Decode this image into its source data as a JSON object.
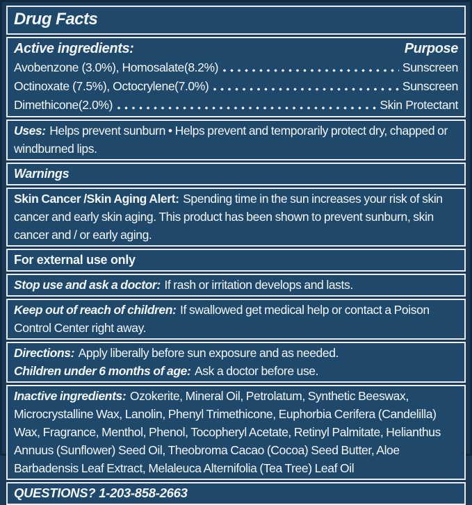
{
  "colors": {
    "panel_background": "#1f486b",
    "outer_background": "#1b3a57",
    "outer_border": "#10293f",
    "box_border_line": "#e9eff5",
    "text": "#f3f7fa"
  },
  "title": "Drug Facts",
  "active_ingredients": {
    "heading": "Active ingredients:",
    "purpose_heading": "Purpose",
    "rows": [
      {
        "ingredient": "Avobenzone (3.0%), Homosalate(8.2%)",
        "purpose": "Sunscreen"
      },
      {
        "ingredient": "Octinoxate (7.5%), Octocrylene(7.0%)",
        "purpose": "Sunscreen"
      },
      {
        "ingredient": "Dimethicone(2.0%)",
        "purpose": "Skin Protectant"
      }
    ]
  },
  "uses": {
    "label": "Uses:",
    "text": "Helps prevent sunburn • Helps prevent and temporarily protect dry, chapped or windburned lips."
  },
  "warnings_heading": "Warnings",
  "skin_alert": {
    "label": "Skin Cancer /Skin Aging Alert:",
    "text": "Spending time in the sun increases your risk of skin cancer and early skin aging. This product has been shown to prevent sunburn, skin cancer and / or early aging."
  },
  "external_use": "For external use only",
  "stop_use": {
    "label": "Stop use and ask a doctor:",
    "text": "If rash or irritation develops and lasts."
  },
  "keep_out": {
    "label": "Keep out of reach of children:",
    "text": "If swallowed get medical help or contact a Poison Control Center right away."
  },
  "directions": {
    "label": "Directions:",
    "text": "Apply liberally before sun exposure and as needed."
  },
  "children_under_6": {
    "label": "Children under 6 months of age:",
    "text": "Ask a doctor before use."
  },
  "inactive_ingredients": {
    "label": "Inactive ingredients:",
    "text": "Ozokerite, Mineral Oil, Petrolatum, Synthetic Beeswax, Microcrystalline Wax, Lanolin, Phenyl Trimethicone, Euphorbia Cerifera (Candelilla) Wax, Fragrance, Menthol, Phenol, Tocopheryl Acetate, Retinyl Palmitate, Helianthus Annuus (Sunflower) Seed Oil, Theobroma Cacao (Cocoa) Seed Butter, Aloe Barbadensis Leaf Extract, Melaleuca Alternifolia (Tea Tree) Leaf Oil"
  },
  "questions": "QUESTIONS? 1-203-858-2663"
}
